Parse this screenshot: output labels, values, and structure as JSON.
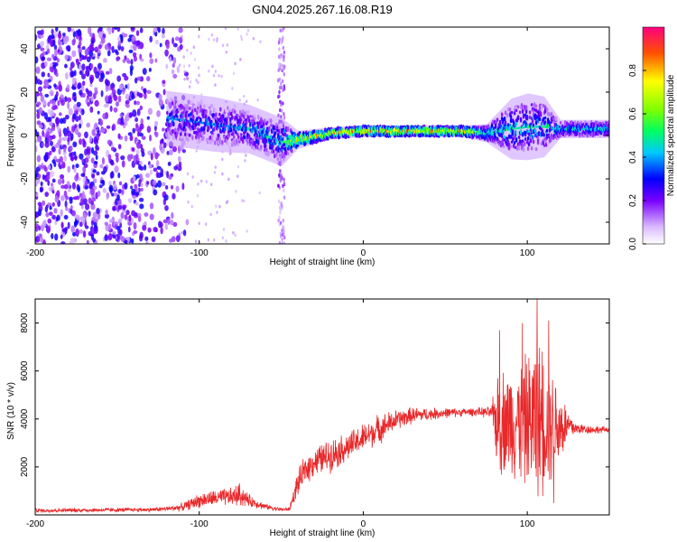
{
  "chart_data": [
    {
      "type": "heatmap",
      "title": "GN04.2025.267.16.08.R19",
      "xlabel": "Height of straight line (km)",
      "ylabel": "Frequency (Hz)",
      "xlim": [
        -200,
        150
      ],
      "ylim": [
        -50,
        50
      ],
      "x_ticks": [
        -200,
        -100,
        0,
        100
      ],
      "y_ticks": [
        -40,
        -20,
        0,
        20,
        40
      ],
      "colorbar": {
        "label": "Normalized spectral amplitude",
        "range": [
          0,
          1
        ],
        "ticks": [
          "0.0",
          "0.2",
          "0.4",
          "0.6",
          "0.8"
        ]
      },
      "features": [
        {
          "name": "broadband noise",
          "x_range": [
            -200,
            -115
          ],
          "level": 0.25
        },
        {
          "name": "vertical noise streak",
          "x_range": [
            -52,
            -48
          ],
          "level": 0.2
        },
        {
          "name": "signal band",
          "x": [
            -120,
            -90,
            -70,
            -50,
            -40,
            -20,
            0,
            60,
            75,
            90,
            100,
            110,
            120,
            150
          ],
          "center_hz": [
            8,
            5,
            3,
            -3,
            -2,
            1,
            2,
            2,
            1,
            3,
            4,
            4,
            3,
            3
          ],
          "half_width_hz": [
            9,
            9,
            8,
            8,
            3,
            2,
            2,
            2,
            3,
            10,
            11,
            10,
            3,
            3
          ],
          "peak_level": [
            0.35,
            0.35,
            0.4,
            0.45,
            0.8,
            0.8,
            0.85,
            0.85,
            0.5,
            0.45,
            0.45,
            0.45,
            0.45,
            0.45
          ]
        }
      ]
    },
    {
      "type": "line",
      "xlabel": "Height of straight line (km)",
      "ylabel": "SNR (10 * v/v)",
      "xlim": [
        -200,
        150
      ],
      "ylim": [
        0,
        9000
      ],
      "x_ticks": [
        -200,
        -100,
        0,
        100
      ],
      "y_ticks": [
        2000,
        4000,
        6000,
        8000
      ],
      "series": [
        {
          "name": "SNR",
          "color": "#e8282a",
          "envelope_x": [
            -200,
            -130,
            -120,
            -110,
            -100,
            -90,
            -80,
            -75,
            -70,
            -60,
            -50,
            -45,
            -40,
            -35,
            -30,
            -20,
            -10,
            0,
            10,
            20,
            30,
            40,
            50,
            60,
            70,
            78,
            82,
            90,
            100,
            105,
            110,
            115,
            120,
            125,
            130,
            140,
            150
          ],
          "envelope_mean": [
            180,
            220,
            250,
            330,
            600,
            700,
            750,
            850,
            600,
            350,
            220,
            240,
            1300,
            1900,
            2200,
            2500,
            2800,
            3200,
            3600,
            3950,
            4150,
            4200,
            4250,
            4280,
            4300,
            4250,
            3900,
            3900,
            3900,
            4000,
            3900,
            3800,
            3700,
            3700,
            3600,
            3550,
            3550
          ],
          "envelope_amp": [
            100,
            100,
            120,
            200,
            350,
            400,
            450,
            600,
            300,
            150,
            90,
            100,
            600,
            700,
            700,
            800,
            700,
            700,
            700,
            500,
            400,
            300,
            250,
            200,
            200,
            300,
            2500,
            2700,
            3200,
            4000,
            3300,
            2800,
            2000,
            800,
            300,
            200,
            150
          ],
          "peaks": [
            {
              "x": 83,
              "y": 7700
            },
            {
              "x": 97,
              "y": 8000
            },
            {
              "x": 106,
              "y": 9000
            },
            {
              "x": 109,
              "y": 6800
            },
            {
              "x": 113,
              "y": 8100
            },
            {
              "x": 116,
              "y": 500
            }
          ]
        }
      ]
    }
  ]
}
